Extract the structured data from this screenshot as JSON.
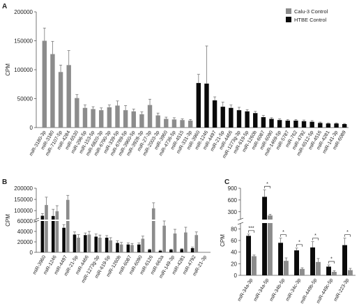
{
  "panels": {
    "A": "A",
    "B": "B",
    "C": "C"
  },
  "colors": {
    "calu3": "#8c8c8c",
    "htbe": "#0a0a0a",
    "axis": "#555555",
    "text": "#222222"
  },
  "chart_data": [
    {
      "id": "A",
      "type": "bar",
      "ylabel": "CPM",
      "ylim": [
        0,
        200000
      ],
      "yticks": [
        0,
        50000,
        100000,
        150000,
        200000
      ],
      "legend": {
        "position": "top-right",
        "entries": [
          {
            "name": "Calu-3 Control",
            "color": "#8c8c8c"
          },
          {
            "name": "HTBE Control",
            "color": "#0a0a0a"
          }
        ]
      },
      "series": [
        {
          "name": "Calu-3 Control",
          "color": "#8c8c8c",
          "categories": [
            "miR-3180-3p",
            "miR-3180",
            "miR-7107-5p",
            "miR-4284",
            "miR-6530",
            "miR-296-5p",
            "miR-153-5p",
            "miR-6820-3p",
            "miR-6790-3p",
            "miR-339-5p",
            "miR-6789-5p",
            "miR-3960-5p",
            "miR-3928-3p",
            "miR-27-3p",
            "miR-2003-3p",
            "miR-3960",
            "miR-4736-5p",
            "miR-4515",
            "miR-331-3p"
          ],
          "values": [
            150000,
            127000,
            96000,
            108000,
            51000,
            34000,
            32000,
            30000,
            35000,
            38000,
            30000,
            28000,
            23000,
            39000,
            21000,
            15000,
            14000,
            13000,
            12000
          ],
          "errors": [
            22000,
            22000,
            12000,
            25000,
            6000,
            5000,
            4000,
            4000,
            4000,
            8000,
            8000,
            4000,
            4000,
            10000,
            4000,
            3000,
            3000,
            2000,
            2000
          ]
        },
        {
          "name": "HTBE Control",
          "color": "#0a0a0a",
          "categories": [
            "miR-3960",
            "miR-1246",
            "miR-4497",
            "miR-21-5p",
            "miR-4466",
            "miR-1273g-3p",
            "miR-619-5p",
            "miR-1260b",
            "miR-6087",
            "miR-6090",
            "miR-1469-5p",
            "miR-5787",
            "miR-762",
            "miR-4792",
            "miR-6512-5p",
            "miR-4516",
            "miR-4281",
            "miR-141-3p",
            "miR-6089"
          ],
          "values": [
            77000,
            76000,
            47000,
            36000,
            34000,
            30000,
            28000,
            25000,
            18000,
            15000,
            13000,
            12000,
            12000,
            11000,
            10000,
            8000,
            7000,
            7000,
            6000
          ],
          "errors": [
            15000,
            65000,
            6000,
            8000,
            5000,
            5000,
            3000,
            3000,
            3000,
            2000,
            2000,
            2000,
            2000,
            2000,
            2000,
            1500,
            1000,
            1000,
            1000
          ]
        }
      ]
    },
    {
      "id": "B",
      "type": "bar",
      "ylabel": "CPM",
      "ylim": [
        0,
        200000
      ],
      "broken_axis": {
        "lower": [
          0,
          60000
        ],
        "upper": [
          60000,
          200000
        ]
      },
      "yticks": [
        0,
        20000,
        40000,
        60000,
        100000,
        150000,
        200000
      ],
      "categories": [
        "miR-3960",
        "miR-1246",
        "miR-4497",
        "miR-21-5p",
        "miR-4466",
        "miR-1273g-3p",
        "miR-619-5p",
        "miR-1260b",
        "miR-6087",
        "miR-6090",
        "miR-6126",
        "miR-663a",
        "miR-149-3p",
        "miR-4281",
        "miR-4792",
        "miR-21-3p"
      ],
      "series": [
        {
          "name": "HTBE Control",
          "color": "#0a0a0a",
          "values": [
            77000,
            76000,
            47000,
            34000,
            33000,
            30000,
            28000,
            18000,
            15000,
            15000,
            5000,
            3000,
            5000,
            6000,
            8000,
            0
          ],
          "errors": [
            10000,
            30000,
            6000,
            5000,
            4000,
            5000,
            4000,
            4000,
            3000,
            3000,
            1000,
            1000,
            1000,
            1000,
            2000,
            0
          ]
        },
        {
          "name": "Calu-3 Control",
          "color": "#8c8c8c",
          "values": [
            125000,
            97000,
            148000,
            28000,
            34000,
            28000,
            23000,
            15000,
            14000,
            26000,
            110000,
            51000,
            36000,
            38000,
            33000,
            0
          ],
          "errors": [
            35000,
            25000,
            20000,
            6000,
            6000,
            5000,
            5000,
            4000,
            3000,
            5000,
            25000,
            10000,
            8000,
            10000,
            6000,
            0
          ]
        }
      ]
    },
    {
      "id": "C",
      "type": "bar",
      "ylabel": "CPM",
      "broken_axis": {
        "lower": [
          0,
          100
        ],
        "upper": [
          100,
          900
        ]
      },
      "yticks": [
        0,
        20,
        40,
        60,
        80,
        300,
        600,
        900
      ],
      "categories": [
        "miR-34a-3p",
        "miR-34a-5p",
        "miR-34b-5p",
        "miR-34c-3p",
        "miR-449b-5p",
        "miR-449c-5p",
        "miR-223-3p"
      ],
      "series": [
        {
          "name": "HTBE Control",
          "color": "#0a0a0a",
          "values": [
            68,
            680,
            56,
            43,
            48,
            15,
            52
          ],
          "errors": [
            3,
            180,
            8,
            4,
            10,
            3,
            12
          ]
        },
        {
          "name": "Calu-3 Control",
          "color": "#8c8c8c",
          "values": [
            33,
            205,
            25,
            11,
            23,
            6,
            9
          ],
          "errors": [
            2,
            30,
            5,
            2,
            6,
            2,
            3
          ]
        }
      ],
      "significance": [
        "***",
        "*",
        "*",
        "*",
        "*",
        "*",
        "*"
      ]
    }
  ]
}
